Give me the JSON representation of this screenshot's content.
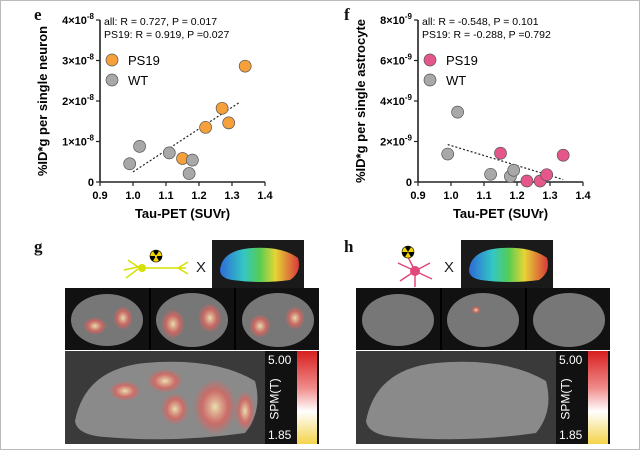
{
  "panels": {
    "e": "e",
    "f": "f",
    "g": "g",
    "h": "h"
  },
  "chart_data": [
    {
      "type": "scatter",
      "id": "e",
      "ylabel": "%ID*g per single neuron",
      "xlabel": "Tau-PET (SUVr)",
      "xlim": [
        0.9,
        1.4
      ],
      "ylim": [
        0,
        4e-08
      ],
      "x_ticks": [
        "0.9",
        "1.0",
        "1.1",
        "1.2",
        "1.3",
        "1.4"
      ],
      "y_ticks": [
        {
          "mant": "0",
          "exp": ""
        },
        {
          "mant": "1×10",
          "exp": "-8"
        },
        {
          "mant": "2×10",
          "exp": "-8"
        },
        {
          "mant": "3×10",
          "exp": "-8"
        },
        {
          "mant": "4×10",
          "exp": "-8"
        }
      ],
      "stats": [
        "all: R = 0.727, P = 0.017",
        "PS19: R = 0.919, P =0.027"
      ],
      "legend": [
        {
          "name": "PS19",
          "color": "#F5A03A"
        },
        {
          "name": "WT",
          "color": "#A8A8A8"
        }
      ],
      "series": [
        {
          "name": "PS19",
          "color": "#F5A03A",
          "points": [
            [
              1.15,
              5.8e-09
            ],
            [
              1.22,
              1.35e-08
            ],
            [
              1.27,
              1.82e-08
            ],
            [
              1.29,
              1.46e-08
            ],
            [
              1.34,
              2.86e-08
            ]
          ]
        },
        {
          "name": "WT",
          "color": "#A8A8A8",
          "points": [
            [
              0.99,
              4.5e-09
            ],
            [
              1.02,
              8.8e-09
            ],
            [
              1.11,
              7.2e-09
            ],
            [
              1.17,
              2.1e-09
            ],
            [
              1.18,
              5.4e-09
            ]
          ]
        }
      ],
      "trend": [
        [
          1.0,
          2.5e-09
        ],
        [
          1.32,
          1.95e-08
        ]
      ]
    },
    {
      "type": "scatter",
      "id": "f",
      "ylabel": "%ID*g per single astrocyte",
      "xlabel": "Tau-PET (SUVr)",
      "xlim": [
        0.9,
        1.4
      ],
      "ylim": [
        0,
        8e-09
      ],
      "x_ticks": [
        "0.9",
        "1.0",
        "1.1",
        "1.2",
        "1.3",
        "1.4"
      ],
      "y_ticks": [
        {
          "mant": "0",
          "exp": ""
        },
        {
          "mant": "2×10",
          "exp": "-9"
        },
        {
          "mant": "4×10",
          "exp": "-9"
        },
        {
          "mant": "6×10",
          "exp": "-9"
        },
        {
          "mant": "8×10",
          "exp": "-9"
        }
      ],
      "stats": [
        "all: R = -0.548, P = 0.101",
        "PS19: R = -0.288, P =0.792"
      ],
      "legend": [
        {
          "name": "PS19",
          "color": "#E5578A"
        },
        {
          "name": "WT",
          "color": "#A8A8A8"
        }
      ],
      "series": [
        {
          "name": "PS19",
          "color": "#E5578A",
          "points": [
            [
              1.15,
              1.42e-09
            ],
            [
              1.23,
              5e-11
            ],
            [
              1.27,
              5e-11
            ],
            [
              1.29,
              3.6e-10
            ],
            [
              1.34,
              1.32e-09
            ]
          ]
        },
        {
          "name": "WT",
          "color": "#A8A8A8",
          "points": [
            [
              0.99,
              1.38e-09
            ],
            [
              1.02,
              3.45e-09
            ],
            [
              1.12,
              3.8e-10
            ],
            [
              1.18,
              2.8e-10
            ],
            [
              1.19,
              5.8e-10
            ]
          ]
        }
      ],
      "trend": [
        [
          0.99,
          1.85e-09
        ],
        [
          1.34,
          1.2e-10
        ]
      ]
    }
  ],
  "colorbars": [
    {
      "top": "5.00",
      "bottom": "1.85",
      "label": "SPM(T)"
    },
    {
      "top": "5.00",
      "bottom": "1.85",
      "label": "SPM(T)"
    }
  ],
  "times_symbol": "X",
  "colors": {
    "neuron": "#D7E000",
    "astrocyte": "#E0487E",
    "radiation_yellow": "#F2D400"
  }
}
